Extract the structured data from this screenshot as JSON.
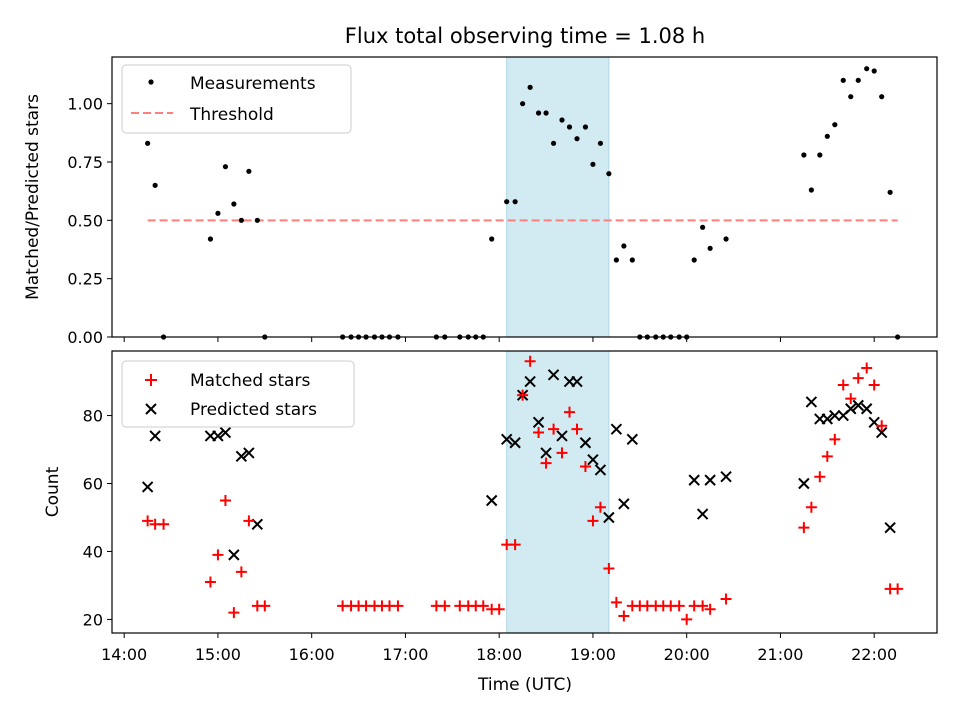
{
  "figure": {
    "title": "Flux total observing time = 1.08 h",
    "xlabel": "Time (UTC)",
    "x_ticks": [
      "14:00",
      "15:00",
      "16:00",
      "17:00",
      "18:00",
      "19:00",
      "20:00",
      "21:00",
      "22:00"
    ],
    "shaded_region_hours": [
      18.08,
      19.17
    ],
    "colors": {
      "measurements": "#000000",
      "threshold": "#ff7f7f",
      "matched": "#ff0000",
      "predicted": "#000000",
      "shade": "#add8e6"
    }
  },
  "chart_data": [
    {
      "type": "scatter",
      "ylabel": "Matched/Predicted stars",
      "xlim": [
        13.87,
        22.67
      ],
      "ylim": [
        0,
        1.2
      ],
      "y_ticks": [
        "0.00",
        "0.25",
        "0.50",
        "0.75",
        "1.00"
      ],
      "grid": false,
      "legend_position": "top-left",
      "series": [
        {
          "name": "Measurements",
          "marker": "dot",
          "x": [
            14.25,
            14.33,
            14.42,
            14.92,
            15.0,
            15.08,
            15.17,
            15.25,
            15.33,
            15.42,
            15.5,
            16.33,
            16.42,
            16.5,
            16.58,
            16.67,
            16.75,
            16.83,
            16.92,
            17.33,
            17.42,
            17.58,
            17.67,
            17.75,
            17.83,
            17.92,
            18.08,
            18.17,
            18.25,
            18.33,
            18.42,
            18.5,
            18.58,
            18.67,
            18.75,
            18.83,
            18.92,
            19.0,
            19.08,
            19.17,
            19.25,
            19.33,
            19.42,
            19.5,
            19.58,
            19.67,
            19.75,
            19.83,
            19.92,
            20.0,
            20.08,
            20.17,
            20.25,
            20.42,
            21.25,
            21.33,
            21.42,
            21.5,
            21.58,
            21.67,
            21.75,
            21.83,
            21.92,
            22.0,
            22.08,
            22.17,
            22.25
          ],
          "y": [
            0.83,
            0.65,
            0.0,
            0.42,
            0.53,
            0.73,
            0.57,
            0.5,
            0.71,
            0.5,
            0.0,
            0.0,
            0.0,
            0.0,
            0.0,
            0.0,
            0.0,
            0.0,
            0.0,
            0.0,
            0.0,
            0.0,
            0.0,
            0.0,
            0.0,
            0.42,
            0.58,
            0.58,
            1.0,
            1.07,
            0.96,
            0.96,
            0.83,
            0.93,
            0.9,
            0.85,
            0.9,
            0.74,
            0.83,
            0.7,
            0.33,
            0.39,
            0.33,
            0.0,
            0.0,
            0.0,
            0.0,
            0.0,
            0.0,
            0.0,
            0.33,
            0.47,
            0.38,
            0.42,
            0.78,
            0.63,
            0.78,
            0.86,
            0.91,
            1.1,
            1.03,
            1.1,
            1.15,
            1.14,
            1.03,
            0.62,
            0.0
          ]
        },
        {
          "name": "Threshold",
          "line": "dashed",
          "x": [
            14.25,
            22.25
          ],
          "y": [
            0.5,
            0.5
          ]
        }
      ]
    },
    {
      "type": "scatter",
      "ylabel": "Count",
      "xlim": [
        13.87,
        22.67
      ],
      "ylim": [
        16,
        99
      ],
      "y_ticks": [
        "20",
        "40",
        "60",
        "80"
      ],
      "grid": false,
      "legend_position": "top-left",
      "series": [
        {
          "name": "Matched stars",
          "marker": "plus",
          "x": [
            14.25,
            14.33,
            14.42,
            14.92,
            15.0,
            15.08,
            15.17,
            15.25,
            15.33,
            15.42,
            15.5,
            16.33,
            16.42,
            16.5,
            16.58,
            16.67,
            16.75,
            16.83,
            16.92,
            17.33,
            17.42,
            17.58,
            17.67,
            17.75,
            17.83,
            17.92,
            18.0,
            18.08,
            18.17,
            18.25,
            18.33,
            18.42,
            18.5,
            18.58,
            18.67,
            18.75,
            18.83,
            18.92,
            19.0,
            19.08,
            19.17,
            19.25,
            19.33,
            19.42,
            19.5,
            19.58,
            19.67,
            19.75,
            19.83,
            19.92,
            20.0,
            20.08,
            20.17,
            20.25,
            20.42,
            21.25,
            21.33,
            21.42,
            21.5,
            21.58,
            21.67,
            21.75,
            21.83,
            21.92,
            22.0,
            22.08,
            22.17,
            22.25
          ],
          "y": [
            49,
            48,
            48,
            31,
            39,
            55,
            22,
            34,
            49,
            24,
            24,
            24,
            24,
            24,
            24,
            24,
            24,
            24,
            24,
            24,
            24,
            24,
            24,
            24,
            24,
            23,
            23,
            42,
            42,
            86,
            96,
            75,
            66,
            76,
            69,
            81,
            76,
            65,
            49,
            53,
            35,
            25,
            21,
            24,
            24,
            24,
            24,
            24,
            24,
            24,
            20,
            24,
            24,
            23,
            26,
            47,
            53,
            62,
            68,
            73,
            89,
            85,
            91,
            94,
            89,
            77,
            29,
            29
          ]
        },
        {
          "name": "Predicted stars",
          "marker": "x",
          "x": [
            14.25,
            14.33,
            14.92,
            15.0,
            15.08,
            15.17,
            15.25,
            15.33,
            15.42,
            17.92,
            18.08,
            18.17,
            18.25,
            18.33,
            18.42,
            18.5,
            18.58,
            18.67,
            18.75,
            18.83,
            18.92,
            19.0,
            19.08,
            19.17,
            19.25,
            19.33,
            19.42,
            20.08,
            20.17,
            20.25,
            20.42,
            21.25,
            21.33,
            21.42,
            21.5,
            21.58,
            21.67,
            21.75,
            21.83,
            21.92,
            22.0,
            22.08,
            22.17
          ],
          "y": [
            59,
            74,
            74,
            74,
            75,
            39,
            68,
            69,
            48,
            55,
            73,
            72,
            86,
            90,
            78,
            69,
            92,
            74,
            90,
            90,
            72,
            67,
            64,
            50,
            76,
            54,
            73,
            61,
            51,
            61,
            62,
            60,
            84,
            79,
            79,
            80,
            80,
            82,
            83,
            82,
            78,
            75,
            47
          ]
        }
      ]
    }
  ]
}
